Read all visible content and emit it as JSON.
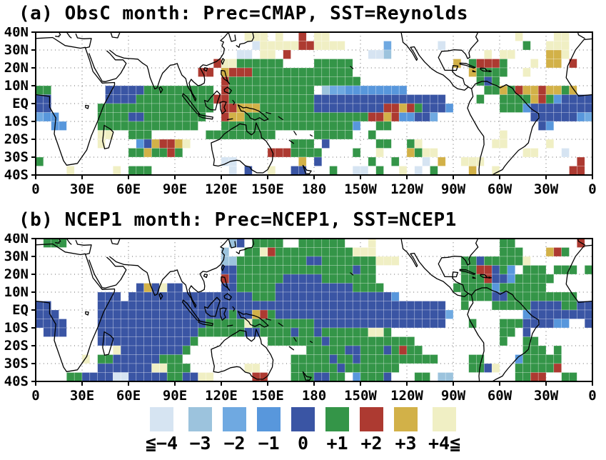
{
  "axes": {
    "x_tick_labels": [
      "0",
      "30E",
      "60E",
      "90E",
      "120E",
      "150E",
      "180",
      "150W",
      "120W",
      "90W",
      "60W",
      "30W",
      "0"
    ],
    "x_tick_lons": [
      0,
      30,
      60,
      90,
      120,
      150,
      180,
      210,
      240,
      270,
      300,
      330,
      360
    ],
    "y_tick_labels": [
      "40N",
      "30N",
      "20N",
      "10N",
      "EQ",
      "10S",
      "20S",
      "30S",
      "40S"
    ],
    "y_tick_lats": [
      40,
      30,
      20,
      10,
      0,
      -10,
      -20,
      -30,
      -40
    ]
  },
  "palette": {
    "1": "#d6e4f2",
    "2": "#9cc3dd",
    "3": "#6fa9e1",
    "4": "#5897dc",
    "5": "#3a55a4",
    "6": "#349548",
    "7": "#ad3a31",
    "8": "#d2b148",
    "9": "#f0efc4"
  },
  "legend": {
    "items": [
      {
        "label": "≦−4",
        "color": "#d6e4f2"
      },
      {
        "label": "−3",
        "color": "#9cc3dd"
      },
      {
        "label": "−2",
        "color": "#6fa9e1"
      },
      {
        "label": "−1",
        "color": "#5897dc"
      },
      {
        "label": "0",
        "color": "#3a55a4"
      },
      {
        "label": "+1",
        "color": "#349548"
      },
      {
        "label": "+2",
        "color": "#ad3a31"
      },
      {
        "label": "+3",
        "color": "#d2b148"
      },
      {
        "label": "+4≦",
        "color": "#f0efc4"
      }
    ]
  },
  "chart_data": [
    {
      "type": "heatmap",
      "title": "(a) ObsC month: Prec=CMAP, SST=Reynolds",
      "lon_range": [
        0,
        360
      ],
      "lat_range": [
        -40,
        40
      ],
      "cell_deg": 5,
      "value_codes": {
        "1": "<=-4",
        "2": "-3",
        "3": "-2",
        "4": "-1",
        "5": "0",
        "6": "+1",
        "7": "+2",
        "8": "+3",
        "9": "+4<="
      },
      "grid_rle": [
        ".27 93 .1 91 .2 71 .1 92 .24 91 .4 92 .3",
        ".28 11 95 72 94 .5 31 .6 11 .10 61 .2 93 .3",
        ".26 12 .1 92 .1 71 .10 12 21 .12 91 .1 92 .4 82 91 .3",
        ".23 71 92 66 .4 65 .13 81 .1 61 73 61 .3 91 .1 82 .1 71 .2",
        ".21 72 .1 81 73 68 65 .15 81 63 61 .2 91 .8",
        ".24 71 617 .15 61 51 61 .12",
        "62 .7 55 69 .1 71 611 .1 21 32 48 .10 62 81 61 71 81 81 71 82 61 81 .2",
        "52 .7 54 610 72 611 517 .4 61 .2 64 81 71 61 41 54",
        "52 .6 615 .1 72 83 67 59 72 81 71 61 53 41 .6 63 41 58",
        "31 42 .5 64 52 68 .2 71 81 81 69 67 72 81 71 42 52 31 .12 56 41 31",
        ".2 42 .4 613 .3 610 66 61 41 .2 62 .19 51 41 .5",
        ".8 92 .2 63 .7 69 .5 65 .2 61 .16 91 .11",
        ".8 91 .4 41 51 81 72 81 91 .13 63 .1 51 .6 62 .2 61 91 .9 92 .5 91 .5",
        ".12 62 81 62 71 61 .11 73 63 61 .4 61 .2 91 .3 81 61 92 .11 92 .3 11 .3",
        "61 .23 12 .8 81 .1 51 .6 61 .2 61 .3 11 .1 81 .2 93 .12 71 .1",
        ".4 91 .5 91 .1 63 .10 11 .1 51 .2 91 .2 52 .3 61 .2 12 .1 61 .2 91 .1 11 .1 61 .4 81 .2 91 .9 72 .1"
      ]
    },
    {
      "type": "heatmap",
      "title": "(b) NCEP1 month: Prec=NCEP1, SST=NCEP1",
      "lon_range": [
        0,
        360
      ],
      "lat_range": [
        -40,
        40
      ],
      "cell_deg": 5,
      "value_codes": {
        "1": "<=-4",
        "2": "-3",
        "3": "-2",
        "4": "-1",
        "5": "0",
        "6": "+1",
        "7": "+2",
        "8": "+3",
        "9": "+4<="
      },
      "grid_rle": [
        ".1 63 .21 21 51 .1 64 .2 66 .3 91 .16 62 .8 71 .1",
        ".24 21 .2 62 91 71 610 92 91 .16 63 .3 81 71 61 .3",
        ".24 22 69 52 67 92 91 .8 62 51 62 63 91 .8",
        ".24 52 615 51 62 .11 62 72 51 61 41 .1 63 .1 63 .1 61",
        ".24 71 51 66 55 67 .11 63 71 52 41 65 .5",
        ".13 51 81 51 91 52 .5 52 65 510 64 .9 65 41 61 65 .6",
        ".8 53 .1 511 55 63 515 41 .8 64 52 69 .2",
        "52 .6 545 .2 61 .3 65 54 62 52",
        "53 .5 517 61 52 81 71 61 522 31 .9 41 58",
        "54 .4 514 61 64 91 61 67 517 .3 61 .3 63 54 42 .2 51",
        ".1 53 .4 513 62 64 52 62 62 51 62 51 66 92 61 .14 62 .1 51 .8",
        ".8 512 61 .9 67 51 611 .11 61 .2 62 .7",
        ".10 91 58 61 .15 65 52 63 51 61 71 62 .13 63 .1 61 .4",
        ".6 91 .1 62 56 63 .14 65 51 62 51 68 62 .4 62 .4 41 65 .4",
        ".8 57 92 63 .7 92 .4 66 51 66 61 .9 62 51 91 .2 65 71 .4",
        ".4 62 54 12 55 62 52 92 .5 72 .3 63 52 62 .1 41 63 51 .3 62 .1 22 .8 62 72 .2 62 .2"
      ]
    }
  ]
}
